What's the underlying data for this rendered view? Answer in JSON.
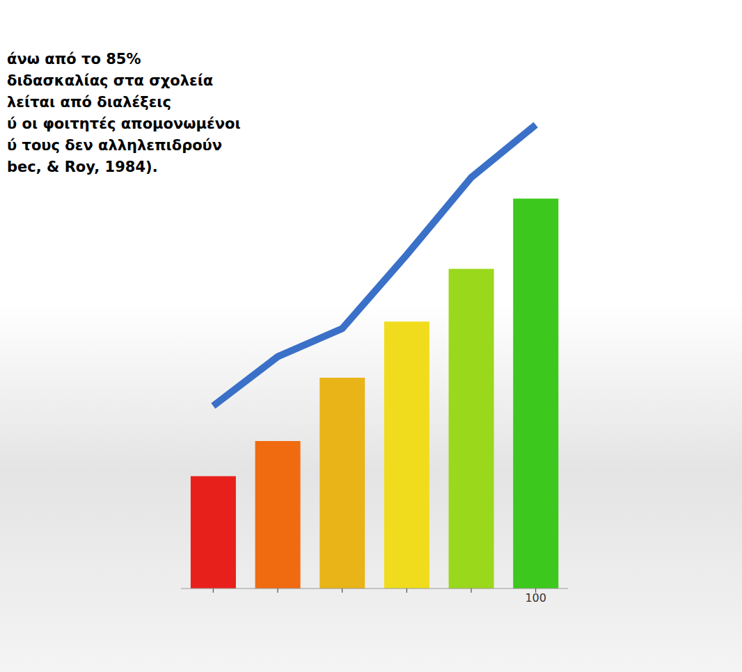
{
  "chart_data": {
    "type": "bar",
    "annotations": [
      "άνω από το 85%",
      "διδασκαλίας στα σχολεία",
      "λείται από διαλέξεις",
      "ύ οι φοιτητές απομονωμένοι",
      "ύ τους δεν αλληλεπιδρούν",
      "bec, & Roy, 1984)."
    ],
    "categories": [
      null,
      null,
      null,
      null,
      null,
      "100"
    ],
    "series": [
      {
        "type": "bar",
        "colors": [
          "#e8201c",
          "#f06a10",
          "#e8b418",
          "#f0dc1c",
          "#9ad81c",
          "#3cc81c"
        ],
        "values": [
          160,
          210,
          300,
          380,
          455,
          555
        ]
      },
      {
        "type": "line",
        "color": "#3a70c8",
        "values": [
          260,
          330,
          370,
          475,
          585,
          660
        ]
      }
    ],
    "ylim": [
      0,
      700
    ],
    "grid": false,
    "tick_labels": "x"
  }
}
